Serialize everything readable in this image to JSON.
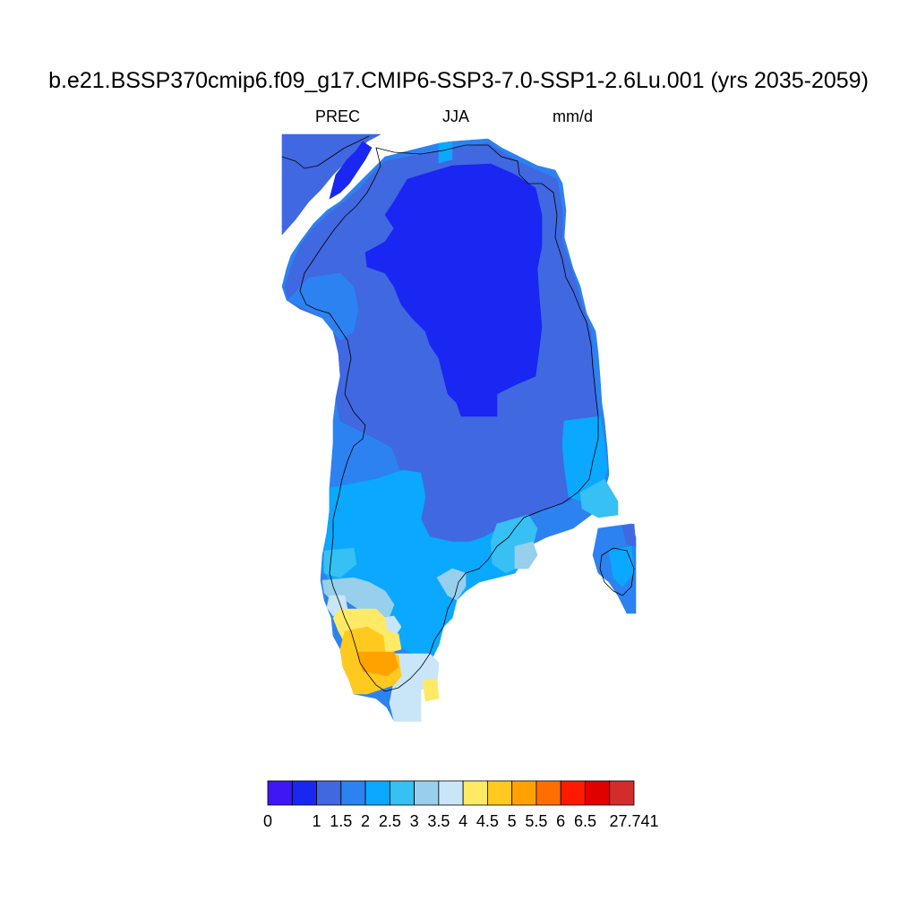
{
  "title": "b.e21.BSSP370cmip6.f09_g17.CMIP6-SSP3-7.0-SSP1-2.6Lu.001 (yrs 2035-2059)",
  "subtitle": {
    "variable": "PREC",
    "season": "JJA",
    "units": "mm/d"
  },
  "colorbar": {
    "colors": [
      "#3f17f2",
      "#1a26f2",
      "#4068e0",
      "#2c82f0",
      "#0aa8ff",
      "#36c0f4",
      "#97cfec",
      "#c8e6f8",
      "#ffe965",
      "#ffc91f",
      "#ffa200",
      "#ff6e00",
      "#ff1a00",
      "#e00000",
      "#d32c2c"
    ],
    "labels": [
      "0",
      "1",
      "1.5",
      "2",
      "2.5",
      "3",
      "3.5",
      "4",
      "4.5",
      "5",
      "5.5",
      "6",
      "6.5",
      "27.741"
    ]
  },
  "map": {
    "region": "Greenland",
    "legend_colors": {
      "c1": "#1a26f2",
      "c2": "#4068e0",
      "c3": "#2c82f0",
      "c4": "#0aa8ff",
      "c5": "#36c0f4",
      "c6": "#97cfec",
      "c7": "#c8e6f8",
      "c8": "#ffe965",
      "c9": "#ffc91f",
      "c10": "#ffa200"
    }
  }
}
